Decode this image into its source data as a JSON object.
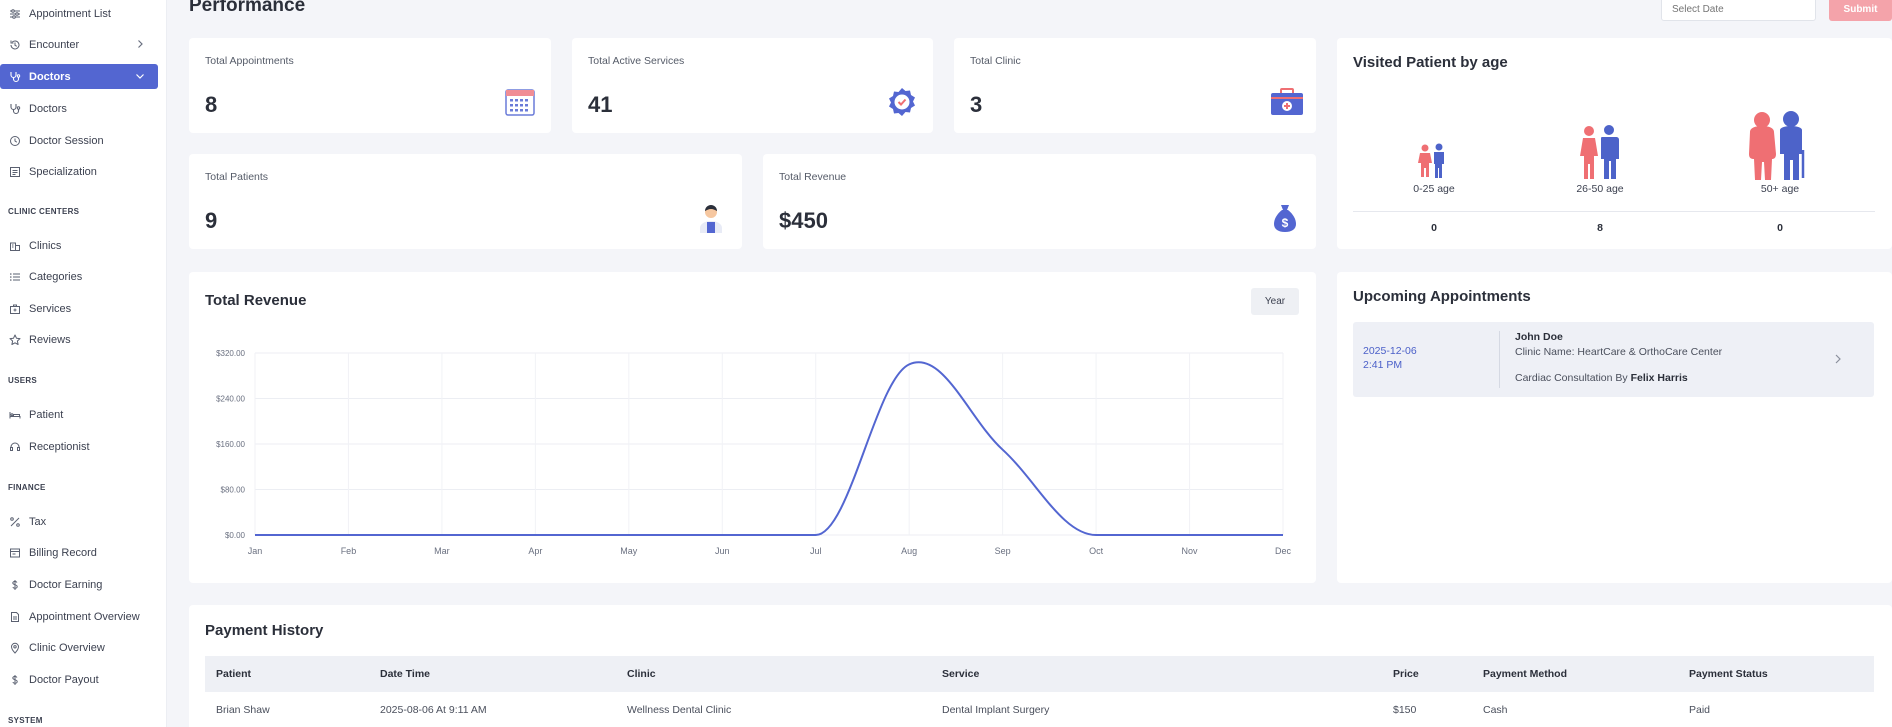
{
  "sidebar": {
    "items": [
      {
        "label": "Appointment List",
        "icon": "sliders-icon"
      },
      {
        "label": "Encounter",
        "icon": "history-icon"
      },
      {
        "label": "Doctors",
        "icon": "stethoscope-icon"
      },
      {
        "label": "Doctors",
        "icon": "stethoscope-icon"
      },
      {
        "label": "Doctor Session",
        "icon": "clock-icon"
      },
      {
        "label": "Specialization",
        "icon": "list-box-icon"
      }
    ],
    "sections": {
      "clinic_centers": "CLINIC CENTERS",
      "users": "USERS",
      "finance": "FINANCE",
      "system": "SYSTEM"
    },
    "clinic_items": [
      {
        "label": "Clinics"
      },
      {
        "label": "Categories"
      },
      {
        "label": "Services"
      },
      {
        "label": "Reviews"
      }
    ],
    "user_items": [
      {
        "label": "Patient"
      },
      {
        "label": "Receptionist"
      }
    ],
    "finance_items": [
      {
        "label": "Tax"
      },
      {
        "label": "Billing Record"
      },
      {
        "label": "Doctor Earning"
      },
      {
        "label": "Appointment Overview"
      },
      {
        "label": "Clinic Overview"
      },
      {
        "label": "Doctor Payout"
      }
    ]
  },
  "header": {
    "title": "Performance",
    "date_placeholder": "Select Date",
    "submit_label": "Submit"
  },
  "stats": {
    "appointments": {
      "label": "Total Appointments",
      "value": "8"
    },
    "services": {
      "label": "Total Active Services",
      "value": "41"
    },
    "clinic": {
      "label": "Total Clinic",
      "value": "3"
    },
    "patients": {
      "label": "Total Patients",
      "value": "9"
    },
    "revenue": {
      "label": "Total Revenue",
      "value": "$450"
    }
  },
  "age_card": {
    "title": "Visited Patient by age",
    "groups": [
      {
        "label": "0-25 age",
        "count": "0"
      },
      {
        "label": "26-50 age",
        "count": "8"
      },
      {
        "label": "50+ age",
        "count": "0"
      }
    ]
  },
  "revenue_chart": {
    "title": "Total Revenue",
    "range_label": "Year"
  },
  "chart_data": {
    "type": "line",
    "title": "Total Revenue",
    "categories": [
      "Jan",
      "Feb",
      "Mar",
      "Apr",
      "May",
      "Jun",
      "Jul",
      "Aug",
      "Sep",
      "Oct",
      "Nov",
      "Dec"
    ],
    "values": [
      0,
      0,
      0,
      0,
      0,
      0,
      0,
      300,
      150,
      0,
      0,
      0
    ],
    "y_ticks": [
      "$320.00",
      "$240.00",
      "$160.00",
      "$80.00",
      "$0.00"
    ],
    "ylim": [
      0,
      320
    ],
    "grid": true,
    "color": "#5366d1"
  },
  "upcoming": {
    "title": "Upcoming Appointments",
    "items": [
      {
        "date": "2025-12-06",
        "time": "2:41 PM",
        "patient": "John Doe",
        "clinic": "Clinic Name: HeartCare & OrthoCare Center",
        "service_prefix": "Cardiac Consultation By",
        "doctor": "Felix Harris"
      }
    ]
  },
  "payments": {
    "title": "Payment History",
    "columns": [
      "Patient",
      "Date Time",
      "Clinic",
      "Service",
      "Price",
      "Payment Method",
      "Payment Status"
    ],
    "rows": [
      [
        "Brian Shaw",
        "2025-08-06 At 9:11 AM",
        "Wellness Dental Clinic",
        "Dental Implant Surgery",
        "$150",
        "Cash",
        "Paid"
      ]
    ]
  },
  "colors": {
    "accent": "#5366d1",
    "submit": "#f4a3aa",
    "female": "#ef6f73",
    "male": "#4d63c9"
  }
}
